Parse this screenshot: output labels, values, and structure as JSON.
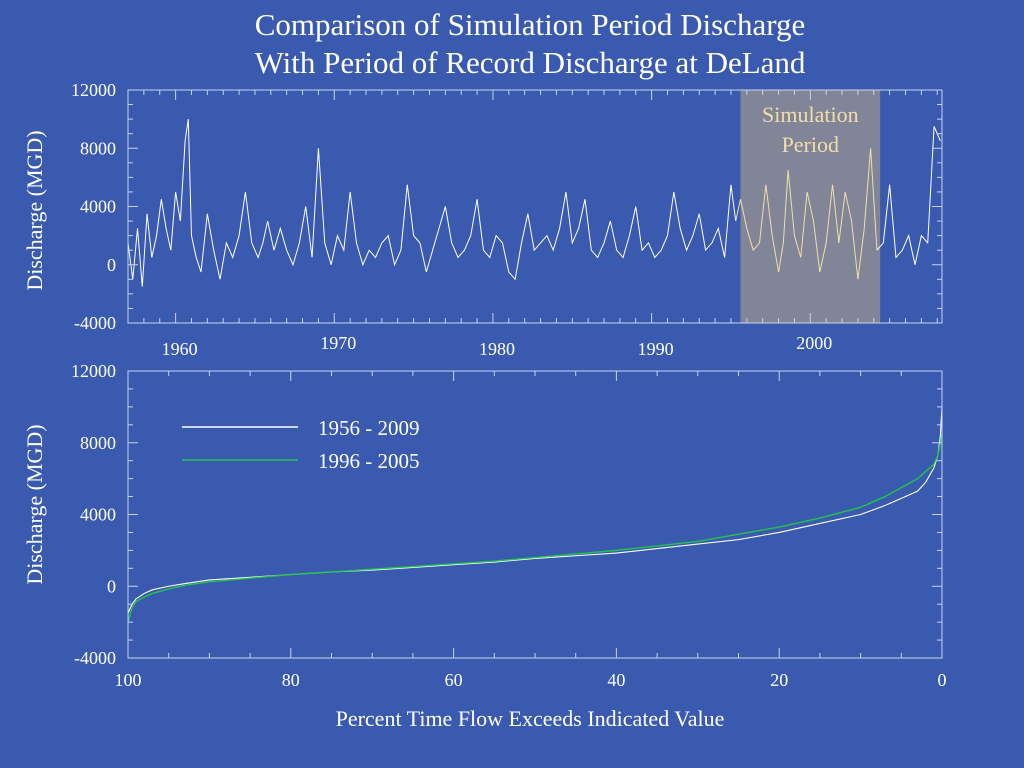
{
  "title_line1": "Comparison of Simulation Period Discharge",
  "title_line2": "With Period of Record Discharge at DeLand",
  "colors": {
    "background": "#3a5ab0",
    "axis": "#c8d3ee",
    "record_series": "#ffffff",
    "simulation_series": "#22c44a",
    "highlight_fill": "#8f8c93",
    "highlight_text": "#f1dfaa",
    "highlight_line": "#f1dfaa"
  },
  "chart_data": [
    {
      "type": "line",
      "ylabel": "Discharge (MGD)",
      "xlabel": "",
      "xlim": [
        1957,
        2008.3
      ],
      "ylim": [
        -4000,
        12000
      ],
      "xticks": [
        1960,
        1970,
        1980,
        1990,
        2000
      ],
      "yticks": [
        -4000,
        0,
        4000,
        8000,
        12000
      ],
      "highlight": {
        "label_line1": "Simulation",
        "label_line2": "Period",
        "x_start": 1995.6,
        "x_end": 2004.4
      },
      "series": [
        {
          "x": [
            1957.0,
            1957.3,
            1957.6,
            1957.9,
            1958.2,
            1958.5,
            1958.8,
            1959.1,
            1959.4,
            1959.7,
            1960.0,
            1960.3,
            1960.6,
            1960.8,
            1961.0,
            1961.3,
            1961.6,
            1962.0,
            1962.4,
            1962.8,
            1963.2,
            1963.6,
            1964.0,
            1964.4,
            1964.8,
            1965.2,
            1965.5,
            1965.8,
            1966.2,
            1966.6,
            1967.0,
            1967.4,
            1967.8,
            1968.2,
            1968.6,
            1969.0,
            1969.4,
            1969.8,
            1970.2,
            1970.6,
            1971.0,
            1971.4,
            1971.8,
            1972.2,
            1972.6,
            1973.0,
            1973.4,
            1973.8,
            1974.2,
            1974.6,
            1975.0,
            1975.4,
            1975.8,
            1976.2,
            1976.6,
            1977.0,
            1977.4,
            1977.8,
            1978.2,
            1978.6,
            1979.0,
            1979.4,
            1979.8,
            1980.2,
            1980.6,
            1981.0,
            1981.4,
            1981.8,
            1982.2,
            1982.6,
            1983.0,
            1983.4,
            1983.8,
            1984.2,
            1984.6,
            1985.0,
            1985.4,
            1985.8,
            1986.2,
            1986.6,
            1987.0,
            1987.4,
            1987.8,
            1988.2,
            1988.6,
            1989.0,
            1989.4,
            1989.8,
            1990.2,
            1990.6,
            1991.0,
            1991.4,
            1991.8,
            1992.2,
            1992.6,
            1993.0,
            1993.4,
            1993.8,
            1994.2,
            1994.6,
            1995.0,
            1995.3,
            1995.6,
            1996.0,
            1996.4,
            1996.8,
            1997.2,
            1997.6,
            1998.0,
            1998.3,
            1998.6,
            1999.0,
            1999.4,
            1999.8,
            2000.2,
            2000.6,
            2001.0,
            2001.4,
            2001.8,
            2002.2,
            2002.6,
            2003.0,
            2003.4,
            2003.8,
            2004.2,
            2004.6,
            2005.0,
            2005.4,
            2005.8,
            2006.2,
            2006.6,
            2007.0,
            2007.4,
            2007.8,
            2008.2
          ],
          "y": [
            1500,
            -1000,
            2500,
            -1500,
            3500,
            500,
            2000,
            4500,
            2500,
            1000,
            5000,
            3000,
            8500,
            10000,
            2000,
            500,
            -500,
            3500,
            1000,
            -1000,
            1500,
            500,
            2000,
            5000,
            1500,
            500,
            1500,
            3000,
            1000,
            2500,
            1000,
            0,
            1500,
            4000,
            500,
            8000,
            1500,
            0,
            2000,
            1000,
            5000,
            1500,
            0,
            1000,
            500,
            1500,
            2000,
            0,
            1000,
            5500,
            2000,
            1500,
            -500,
            1000,
            2500,
            4000,
            1500,
            500,
            1000,
            2000,
            4500,
            1000,
            500,
            2000,
            1500,
            -500,
            -1000,
            1500,
            3500,
            1000,
            1500,
            2000,
            1000,
            2500,
            5000,
            1500,
            2500,
            4500,
            1000,
            500,
            1500,
            3000,
            1000,
            500,
            2000,
            4000,
            1000,
            1500,
            500,
            1000,
            2000,
            5000,
            2500,
            1000,
            2000,
            3500,
            1000,
            1500,
            2500,
            500,
            5500,
            3000,
            4500,
            2500,
            1000,
            1500,
            5500,
            2000,
            -500,
            1500,
            6500,
            2000,
            500,
            5000,
            3000,
            -500,
            1500,
            5500,
            1500,
            5000,
            3000,
            -1000,
            2500,
            8000,
            1000,
            1500,
            5500,
            500,
            1000,
            2000,
            0,
            2000,
            1500,
            9500,
            8500
          ]
        }
      ]
    },
    {
      "type": "line",
      "ylabel": "Discharge (MGD)",
      "xlabel": "Percent Time Flow Exceeds Indicated Value",
      "xlim": [
        100,
        0
      ],
      "ylim": [
        -4000,
        12000
      ],
      "xticks": [
        100,
        80,
        60,
        40,
        20,
        0
      ],
      "yticks": [
        -4000,
        0,
        4000,
        8000,
        12000
      ],
      "legend_position": "top-left",
      "series": [
        {
          "name": "1956 - 2009",
          "color": "#ffffff",
          "x": [
            100,
            99.5,
            99,
            98,
            97,
            95,
            93,
            90,
            85,
            80,
            75,
            70,
            65,
            60,
            55,
            50,
            45,
            40,
            35,
            30,
            25,
            20,
            15,
            10,
            7,
            5,
            3,
            2,
            1,
            0.5,
            0.2,
            0
          ],
          "y": [
            -1500,
            -1000,
            -700,
            -400,
            -200,
            0,
            150,
            350,
            500,
            650,
            800,
            900,
            1050,
            1200,
            1350,
            1550,
            1700,
            1850,
            2100,
            2350,
            2600,
            3000,
            3500,
            4000,
            4500,
            4900,
            5300,
            5800,
            6600,
            7300,
            8400,
            10000
          ]
        },
        {
          "name": "1996 - 2005",
          "color": "#22c44a",
          "x": [
            100,
            99.5,
            99,
            98,
            97,
            95,
            93,
            90,
            85,
            80,
            75,
            70,
            65,
            60,
            55,
            50,
            45,
            40,
            35,
            30,
            25,
            20,
            15,
            10,
            7,
            5,
            3,
            2,
            1,
            0.5,
            0.2,
            0
          ],
          "y": [
            -2000,
            -1200,
            -850,
            -600,
            -400,
            -150,
            50,
            250,
            450,
            650,
            800,
            950,
            1100,
            1250,
            1400,
            1600,
            1800,
            2000,
            2250,
            2500,
            2900,
            3300,
            3800,
            4400,
            5000,
            5500,
            6000,
            6400,
            6800,
            7300,
            8000,
            8500
          ]
        }
      ]
    }
  ]
}
